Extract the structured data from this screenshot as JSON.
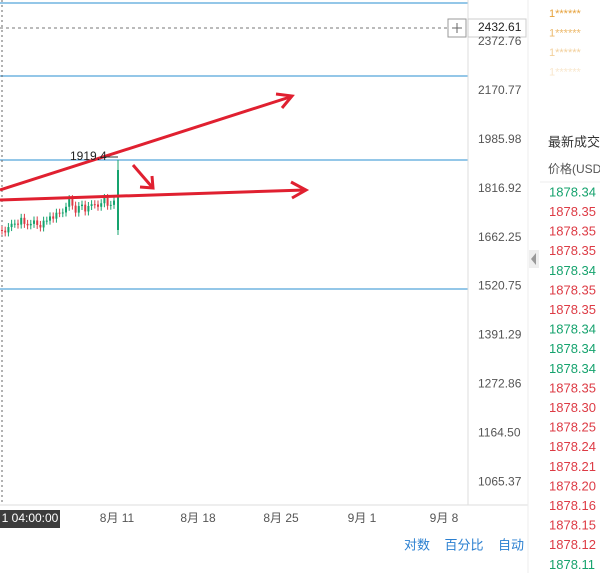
{
  "price_axis": [
    "2372.76",
    "2170.77",
    "1985.98",
    "1816.92",
    "1662.25",
    "1520.75",
    "1391.29",
    "1272.86",
    "1164.50",
    "1065.37"
  ],
  "current_price": "2432.61",
  "annotation": "1919.4",
  "time_label": "1 04:00:00",
  "dates": [
    "8月 11",
    "8月 18",
    "8月 25",
    "9月 1",
    "9月 8"
  ],
  "buttons": [
    "对数",
    "百分比",
    "自动"
  ],
  "users": [
    "1******",
    "1******",
    "1******",
    "1******"
  ],
  "trades_header": "最新成交",
  "price_header": "价格(USDT",
  "trades": [
    {
      "price": "1878.34",
      "color": "#15a36e"
    },
    {
      "price": "1878.35",
      "color": "#dd3b45"
    },
    {
      "price": "1878.35",
      "color": "#dd3b45"
    },
    {
      "price": "1878.35",
      "color": "#dd3b45"
    },
    {
      "price": "1878.34",
      "color": "#15a36e"
    },
    {
      "price": "1878.35",
      "color": "#dd3b45"
    },
    {
      "price": "1878.35",
      "color": "#dd3b45"
    },
    {
      "price": "1878.34",
      "color": "#15a36e"
    },
    {
      "price": "1878.34",
      "color": "#15a36e"
    },
    {
      "price": "1878.34",
      "color": "#15a36e"
    },
    {
      "price": "1878.35",
      "color": "#dd3b45"
    },
    {
      "price": "1878.30",
      "color": "#dd3b45"
    },
    {
      "price": "1878.25",
      "color": "#dd3b45"
    },
    {
      "price": "1878.24",
      "color": "#dd3b45"
    },
    {
      "price": "1878.21",
      "color": "#dd3b45"
    },
    {
      "price": "1878.20",
      "color": "#dd3b45"
    },
    {
      "price": "1878.16",
      "color": "#dd3b45"
    },
    {
      "price": "1878.15",
      "color": "#dd3b45"
    },
    {
      "price": "1878.12",
      "color": "#dd3b45"
    },
    {
      "price": "1878.11",
      "color": "#15a36e"
    }
  ]
}
